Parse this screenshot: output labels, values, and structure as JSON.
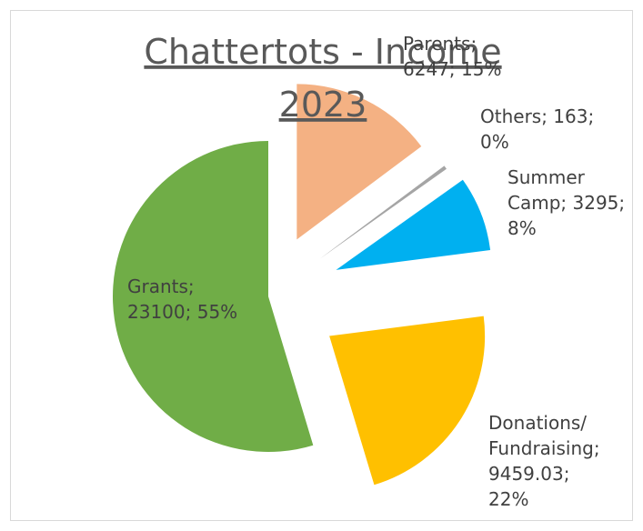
{
  "chart_data": {
    "type": "pie",
    "title": "Chattertots - Income 2023",
    "categories": [
      "Parents",
      "Others",
      "Summer Camp",
      "Donations/ Fundraising",
      "Grants"
    ],
    "values": [
      6247,
      163,
      3295,
      9459.03,
      23100
    ],
    "value_labels": [
      "Parents;\n6247; 15%",
      "Others; 163;\n0%",
      "Summer\nCamp; 3295;\n8%",
      "Donations/\nFundraising;\n9459.03;\n22%",
      "Grants;\n23100; 55%"
    ],
    "colors": [
      "#f4b183",
      "#a5a5a5",
      "#00b0f0",
      "#ffc000",
      "#70ad47"
    ]
  }
}
